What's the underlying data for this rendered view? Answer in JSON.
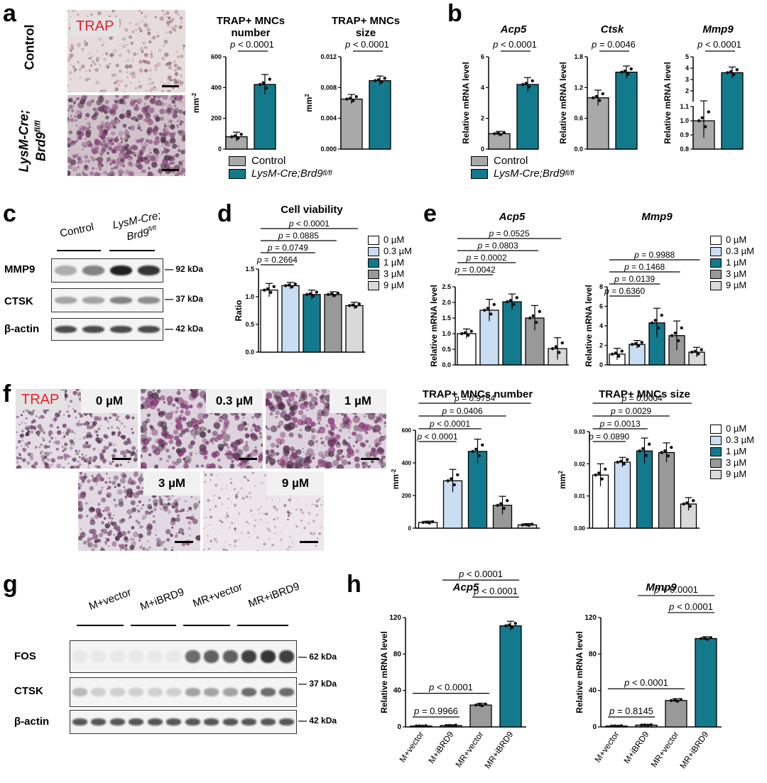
{
  "panels": {
    "a": {
      "label": "a",
      "trap_tag": "TRAP",
      "row_labels": [
        "Control",
        "LysM-Cre;",
        "Brd9"
      ],
      "row_sup": "fl/fl",
      "legend": [
        "Control",
        "LysM-Cre;Brd9"
      ],
      "legend_sup": "fl/fl"
    },
    "b": {
      "label": "b",
      "legend": [
        "Control",
        "LysM-Cre;Brd9"
      ],
      "legend_sup": "fl/fl"
    },
    "c": {
      "label": "c",
      "lanes": [
        "Control",
        "LysM-Cre;",
        "Brd9"
      ],
      "lane_sup": "fl/fl",
      "rows": [
        {
          "name": "MMP9",
          "kda": "92 kDa"
        },
        {
          "name": "CTSK",
          "kda": "37 kDa"
        },
        {
          "name": "β-actin",
          "kda": "42 kDa"
        }
      ]
    },
    "d": {
      "label": "d"
    },
    "e": {
      "label": "e"
    },
    "f": {
      "label": "f",
      "trap_tag": "TRAP",
      "doses": [
        "0 µM",
        "0.3 µM",
        "1 µM",
        "3 µM",
        "9 µM"
      ]
    },
    "g": {
      "label": "g",
      "lanes": [
        "M+vector",
        "M+iBRD9",
        "MR+vector",
        "MR+iBRD9"
      ],
      "rows": [
        {
          "name": "FOS",
          "kda": "62 kDa"
        },
        {
          "name": "CTSK",
          "kda": "37 kDa"
        },
        {
          "name": "β-actin",
          "kda": "42 kDa"
        }
      ]
    },
    "h": {
      "label": "h"
    }
  },
  "dose_legend": [
    "0 µM",
    "0.3 µM",
    "1 µM",
    "3 µM",
    "9 µM"
  ],
  "colors": {
    "control": "#a9a9a9",
    "brd9": "#137a8e",
    "dose": [
      "#ffffff",
      "#c9ddf3",
      "#137a8e",
      "#999999",
      "#d9d9d9"
    ],
    "trap_stain": "#8a3a78",
    "trap_text": "#e8212a"
  },
  "chart_data": [
    {
      "id": "a1",
      "type": "bar",
      "title": [
        "TRAP+ MNCs",
        "number"
      ],
      "ylabel": "mm",
      "ylabel_sup": "-2",
      "categories": [
        "Control",
        "LysM-Cre;Brd9fl/fl"
      ],
      "values": [
        80,
        420
      ],
      "errors": [
        30,
        65
      ],
      "ylim": [
        0,
        600
      ],
      "yticks": [
        "0",
        "200",
        "400",
        "600"
      ],
      "comparisons": [
        {
          "from": 0,
          "to": 1,
          "p": "p < 0.0001"
        }
      ]
    },
    {
      "id": "a2",
      "type": "bar",
      "title": [
        "TRAP+ MNCs",
        "size"
      ],
      "ylabel": "mm",
      "ylabel_sup": "2",
      "categories": [
        "Control",
        "LysM-Cre;Brd9fl/fl"
      ],
      "values": [
        0.0065,
        0.0089
      ],
      "errors": [
        0.0006,
        0.0006
      ],
      "ylim": [
        0,
        0.012
      ],
      "yticks": [
        "0.000",
        "0.004",
        "0.008",
        "0.012"
      ],
      "comparisons": [
        {
          "from": 0,
          "to": 1,
          "p": "p < 0.0001"
        }
      ]
    },
    {
      "id": "b1",
      "type": "bar",
      "title": [
        "Acp5"
      ],
      "title_italic": true,
      "ylabel": "Relative mRNA level",
      "categories": [
        "Control",
        "LysM-Cre;Brd9fl/fl"
      ],
      "values": [
        1.0,
        4.2
      ],
      "errors": [
        0.15,
        0.45
      ],
      "ylim": [
        0,
        6
      ],
      "yticks": [
        "0",
        "2",
        "4",
        "6"
      ],
      "comparisons": [
        {
          "from": 0,
          "to": 1,
          "p": "p < 0.0001"
        }
      ]
    },
    {
      "id": "b2",
      "type": "bar",
      "title": [
        "Ctsk"
      ],
      "title_italic": true,
      "ylabel": "Relative mRNA level",
      "categories": [
        "Control",
        "LysM-Cre;Brd9fl/fl"
      ],
      "values": [
        1.0,
        1.5
      ],
      "errors": [
        0.15,
        0.12
      ],
      "ylim": [
        0,
        1.8
      ],
      "yticks": [
        "0.0",
        "0.6",
        "1.2",
        "1.8"
      ],
      "comparisons": [
        {
          "from": 0,
          "to": 1,
          "p": "p = 0.0046"
        }
      ]
    },
    {
      "id": "b3",
      "type": "bar",
      "title": [
        "Mmp9"
      ],
      "title_italic": true,
      "ylabel": "Relative mRNA level",
      "axis_break": true,
      "categories": [
        "Control",
        "LysM-Cre;Brd9fl/fl"
      ],
      "values": [
        1.0,
        3.6
      ],
      "errors": [
        0.12,
        0.5
      ],
      "ylim": [
        0.8,
        5
      ],
      "yticks": [
        "0.8",
        "0.9",
        "1.0",
        "1.1",
        "2",
        "3",
        "4",
        "5"
      ],
      "comparisons": [
        {
          "from": 0,
          "to": 1,
          "p": "p < 0.0001"
        }
      ]
    },
    {
      "id": "d",
      "type": "bar",
      "title": [
        "Cell viability"
      ],
      "ylabel": "Ratio",
      "categories": [
        "0 µM",
        "0.3 µM",
        "1 µM",
        "3 µM",
        "9 µM"
      ],
      "values": [
        1.12,
        1.2,
        1.04,
        1.04,
        0.84
      ],
      "errors": [
        0.12,
        0.06,
        0.08,
        0.05,
        0.06
      ],
      "ylim": [
        0,
        1.5
      ],
      "yticks": [
        "0.0",
        "0.5",
        "1.0",
        "1.5"
      ],
      "comparisons": [
        {
          "from": 0,
          "to": 1,
          "p": "p = 0.2664"
        },
        {
          "from": 0,
          "to": 2,
          "p": "p = 0.0749"
        },
        {
          "from": 0,
          "to": 3,
          "p": "p = 0.0885"
        },
        {
          "from": 0,
          "to": 4,
          "p": "p < 0.0001"
        }
      ]
    },
    {
      "id": "e1",
      "type": "bar",
      "title": [
        "Acp5"
      ],
      "title_italic": true,
      "ylabel": "Relative mRNA level",
      "categories": [
        "0 µM",
        "0.3 µM",
        "1 µM",
        "3 µM",
        "9 µM"
      ],
      "values": [
        1.0,
        1.75,
        2.02,
        1.5,
        0.52
      ],
      "errors": [
        0.15,
        0.35,
        0.25,
        0.4,
        0.35
      ],
      "ylim": [
        0,
        2.5
      ],
      "yticks": [
        "0.0",
        "0.5",
        "1.0",
        "1.5",
        "2.0",
        "2.5"
      ],
      "comparisons": [
        {
          "from": 0,
          "to": 1,
          "p": "p = 0.0042"
        },
        {
          "from": 0,
          "to": 2,
          "p": "p = 0.0002"
        },
        {
          "from": 0,
          "to": 3,
          "p": "p = 0.0803"
        },
        {
          "from": 0,
          "to": 4,
          "p": "p = 0.0525"
        }
      ]
    },
    {
      "id": "e2",
      "type": "bar",
      "title": [
        "Mmp9"
      ],
      "title_italic": true,
      "ylabel": "Relative mRNA level",
      "categories": [
        "0 µM",
        "0.3 µM",
        "1 µM",
        "3 µM",
        "9 µM"
      ],
      "values": [
        1.1,
        2.1,
        4.3,
        3.0,
        1.3
      ],
      "errors": [
        0.6,
        0.4,
        1.5,
        1.5,
        0.5
      ],
      "ylim": [
        0,
        8
      ],
      "yticks": [
        "0",
        "2",
        "4",
        "6",
        "8"
      ],
      "comparisons": [
        {
          "from": 0,
          "to": 1,
          "p": "p = 0.6360"
        },
        {
          "from": 0,
          "to": 2,
          "p": "p = 0.0139"
        },
        {
          "from": 0,
          "to": 3,
          "p": "p = 0.1468"
        },
        {
          "from": 0,
          "to": 4,
          "p": "p = 0.9988"
        }
      ]
    },
    {
      "id": "f1",
      "type": "bar",
      "title": [
        "TRAP+ MNCs number"
      ],
      "ylabel": "mm",
      "ylabel_sup": "-2",
      "categories": [
        "0 µM",
        "0.3 µM",
        "1 µM",
        "3 µM",
        "9 µM"
      ],
      "values": [
        35,
        290,
        470,
        140,
        20
      ],
      "errors": [
        8,
        70,
        75,
        55,
        8
      ],
      "ylim": [
        0,
        600
      ],
      "yticks": [
        "0",
        "200",
        "400",
        "600"
      ],
      "comparisons": [
        {
          "from": 0,
          "to": 1,
          "p": "p < 0.0001"
        },
        {
          "from": 0,
          "to": 2,
          "p": "p < 0.0001"
        },
        {
          "from": 0,
          "to": 3,
          "p": "p = 0.0406"
        },
        {
          "from": 0,
          "to": 4,
          "p": "p = 0.9754"
        }
      ]
    },
    {
      "id": "f2",
      "type": "bar",
      "title": [
        "TRAP+ MNCs size"
      ],
      "ylabel": "mm",
      "ylabel_sup": "2",
      "categories": [
        "0 µM",
        "0.3 µM",
        "1 µM",
        "3 µM",
        "9 µM"
      ],
      "values": [
        0.0165,
        0.0205,
        0.024,
        0.0235,
        0.0075
      ],
      "errors": [
        0.0035,
        0.0015,
        0.004,
        0.003,
        0.002
      ],
      "ylim": [
        0,
        0.03
      ],
      "yticks": [
        "0.00",
        "0.01",
        "0.02",
        "0.03"
      ],
      "comparisons": [
        {
          "from": 0,
          "to": 1,
          "p": "p = 0.0890"
        },
        {
          "from": 0,
          "to": 2,
          "p": "p = 0.0013"
        },
        {
          "from": 0,
          "to": 3,
          "p": "p = 0.0029"
        },
        {
          "from": 0,
          "to": 4,
          "p": "p = 0.0004"
        }
      ]
    },
    {
      "id": "h1",
      "type": "bar",
      "title": [
        "Acp5"
      ],
      "title_italic": true,
      "ylabel": "Relative mRNA level",
      "categories": [
        "M+vector",
        "M+iBRD9",
        "MR+vector",
        "MR+iBRD9"
      ],
      "values": [
        1,
        1.5,
        24,
        111
      ],
      "errors": [
        0.5,
        0.8,
        2,
        5
      ],
      "ylim": [
        0,
        120
      ],
      "yticks": [
        "0",
        "40",
        "80",
        "120"
      ],
      "comparisons": [
        {
          "from": 0,
          "to": 1,
          "p": "p = 0.9966"
        },
        {
          "from": 0,
          "to": 2,
          "p": "p < 0.0001"
        },
        {
          "from": 2,
          "to": 3,
          "p": "p < 0.0001"
        },
        {
          "from": 1,
          "to": 3,
          "p": "p < 0.0001"
        }
      ]
    },
    {
      "id": "h2",
      "type": "bar",
      "title": [
        "Mmp9"
      ],
      "title_italic": true,
      "ylabel": "Relative mRNA level",
      "categories": [
        "M+vector",
        "M+iBRD9",
        "MR+vector",
        "MR+iBRD9"
      ],
      "values": [
        1,
        2,
        29,
        97
      ],
      "errors": [
        0.5,
        0.8,
        2,
        2
      ],
      "ylim": [
        0,
        120
      ],
      "yticks": [
        "0",
        "40",
        "80",
        "120"
      ],
      "comparisons": [
        {
          "from": 0,
          "to": 1,
          "p": "p = 0.8145"
        },
        {
          "from": 0,
          "to": 2,
          "p": "p < 0.0001"
        },
        {
          "from": 2,
          "to": 3,
          "p": "p < 0.0001"
        },
        {
          "from": 1,
          "to": 3,
          "p": "p < 0.0001"
        }
      ]
    }
  ]
}
